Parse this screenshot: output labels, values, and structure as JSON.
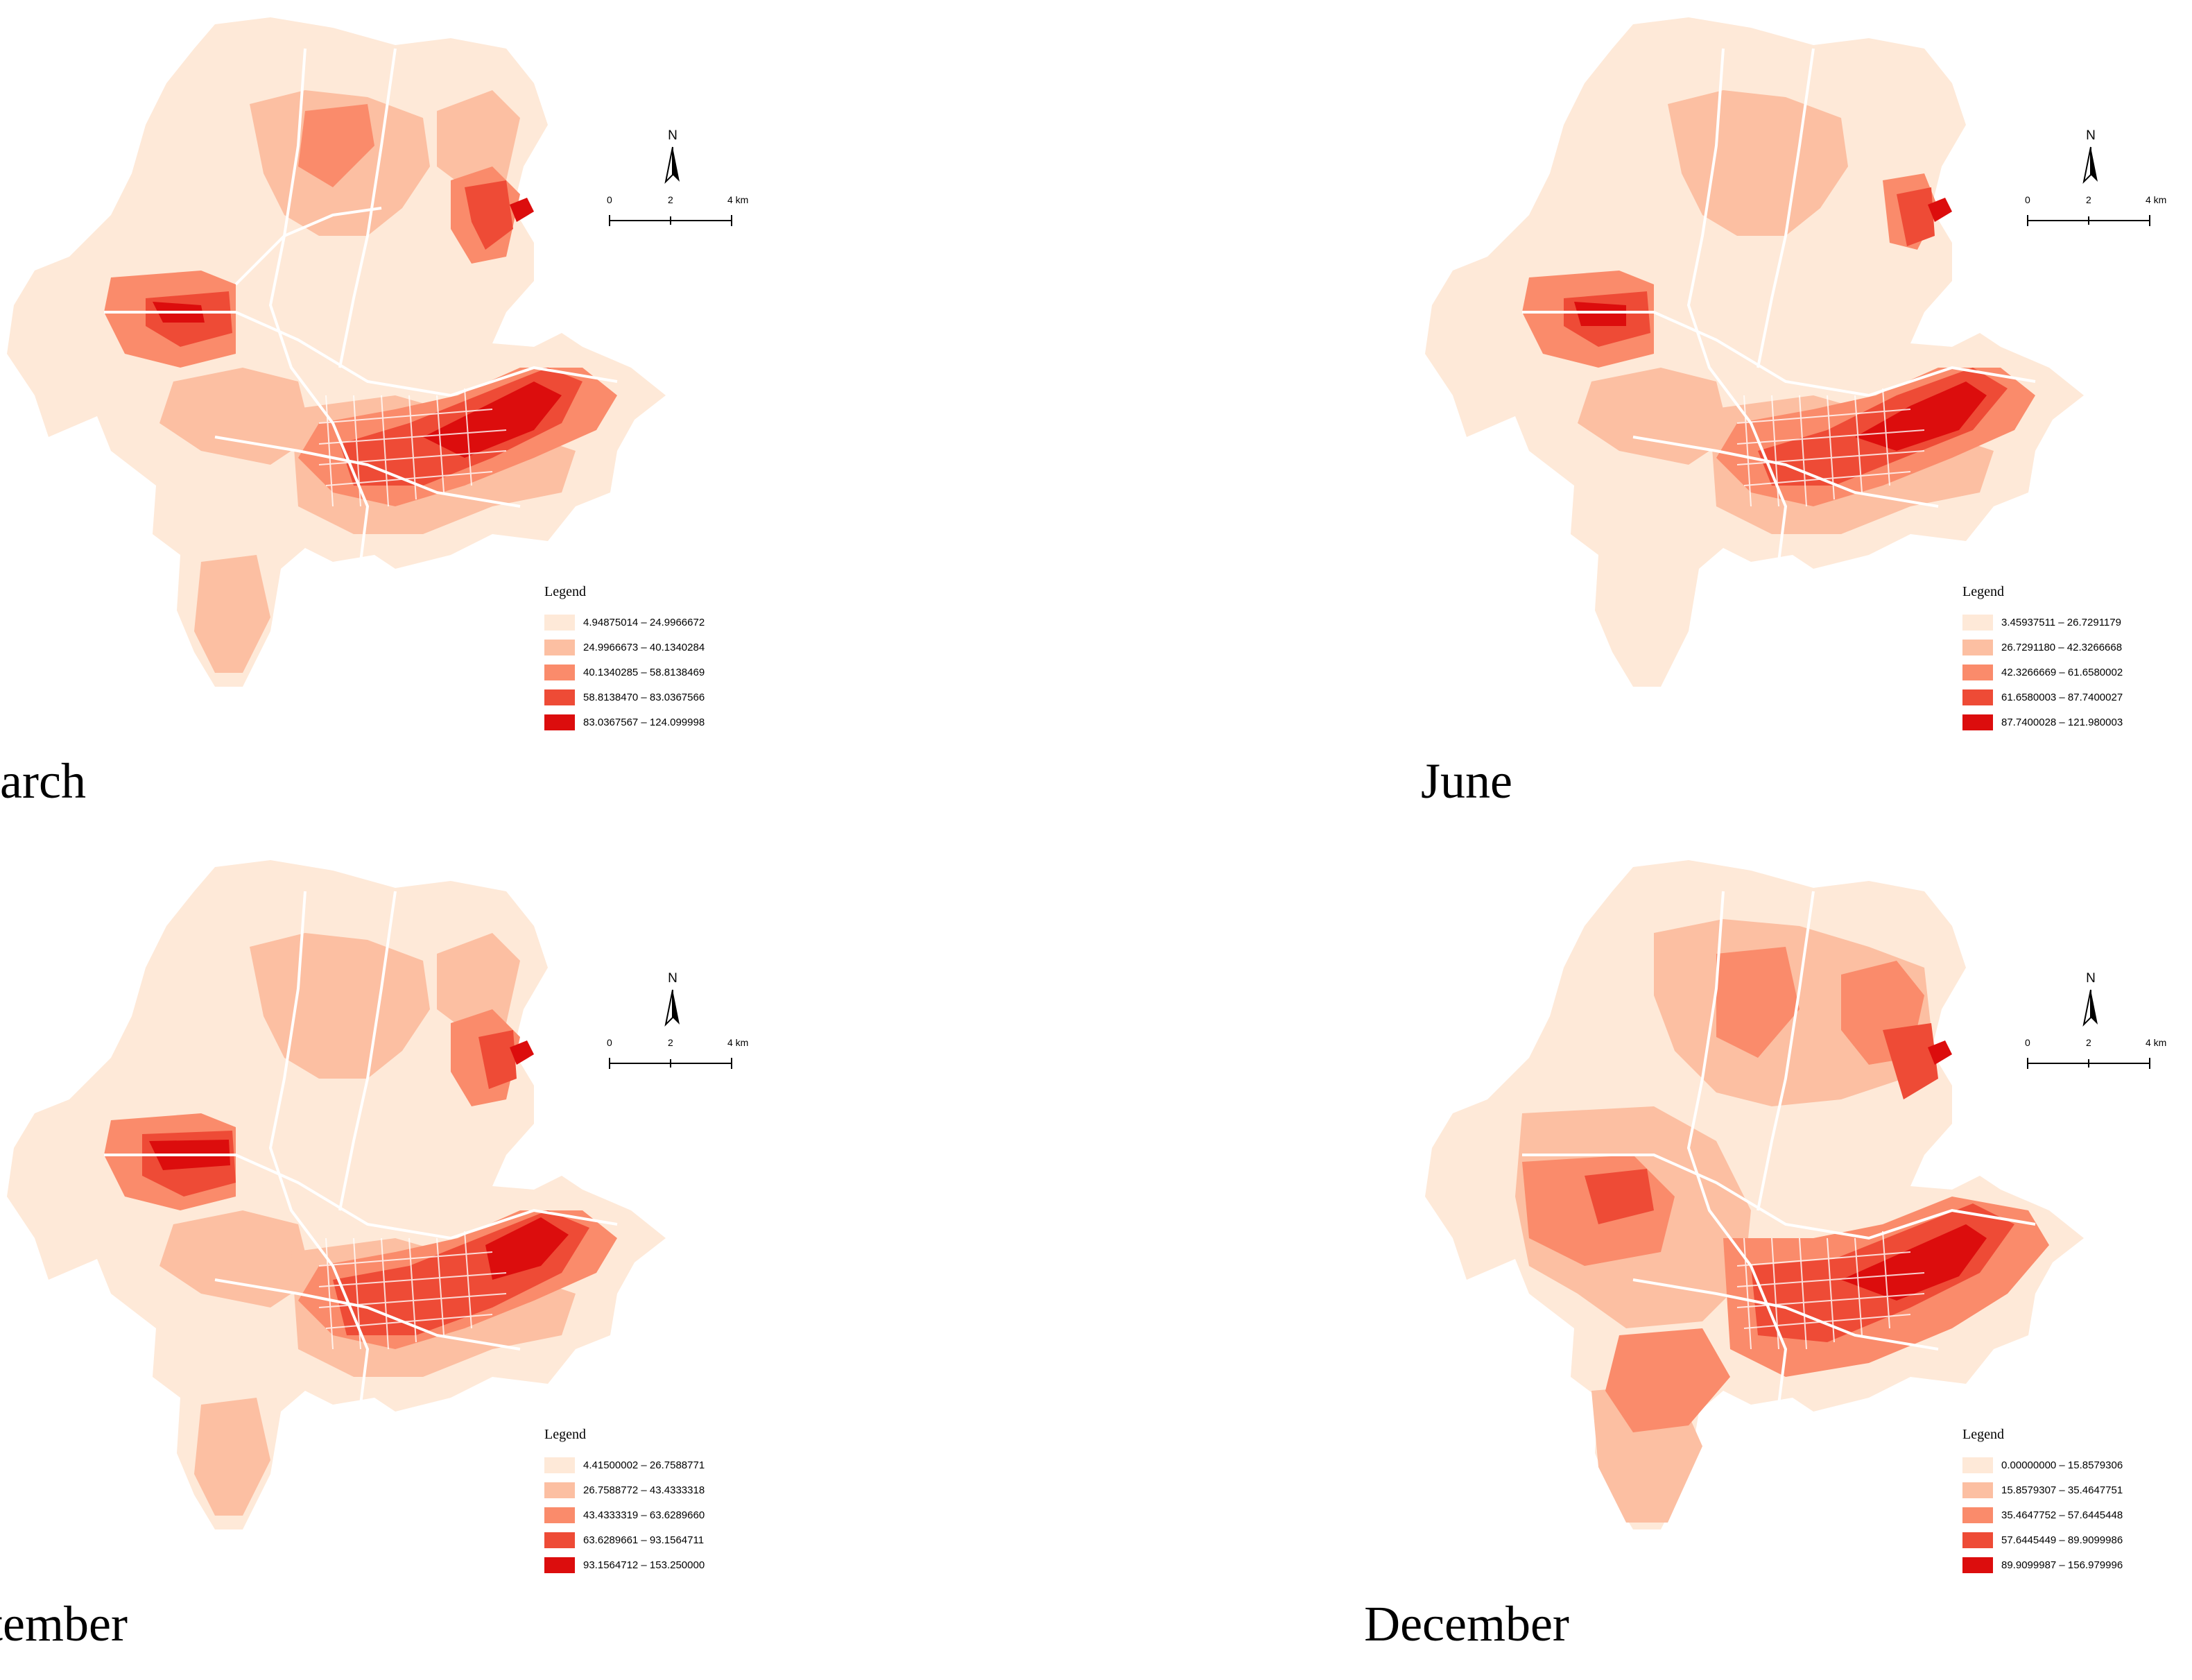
{
  "colors": {
    "class1": "#fee9d8",
    "class2": "#fcbfa2",
    "class3": "#fa8b6b",
    "class4": "#ee4b36",
    "class5": "#dc0d0d",
    "roads": "#ffffff"
  },
  "common": {
    "north_label": "N",
    "scale_ticks": [
      "0",
      "2",
      "4 km"
    ],
    "legend_title": "Legend"
  },
  "maps": {
    "march": {
      "caption": "March",
      "legend": [
        "4.94875014 – 24.9966672",
        "24.9966673 – 40.1340284",
        "40.1340285 – 58.8138469",
        "58.8138470 – 83.0367566",
        "83.0367567 – 124.099998"
      ]
    },
    "june": {
      "caption": "June",
      "legend": [
        "3.45937511 – 26.7291179",
        "26.7291180 – 42.3266668",
        "42.3266669 – 61.6580002",
        "61.6580003 – 87.7400027",
        "87.7400028 – 121.980003"
      ]
    },
    "september": {
      "caption": "September",
      "legend": [
        "4.41500002 – 26.7588771",
        "26.7588772 – 43.4333318",
        "43.4333319 – 63.6289660",
        "63.6289661 – 93.1564711",
        "93.1564712 – 153.250000"
      ]
    },
    "december": {
      "caption": "December",
      "legend": [
        "0.00000000 – 15.8579306",
        "15.8579307 – 35.4647751",
        "35.4647752 – 57.6445448",
        "57.6445449 – 89.9099986",
        "89.9099987 – 156.979996"
      ]
    }
  }
}
